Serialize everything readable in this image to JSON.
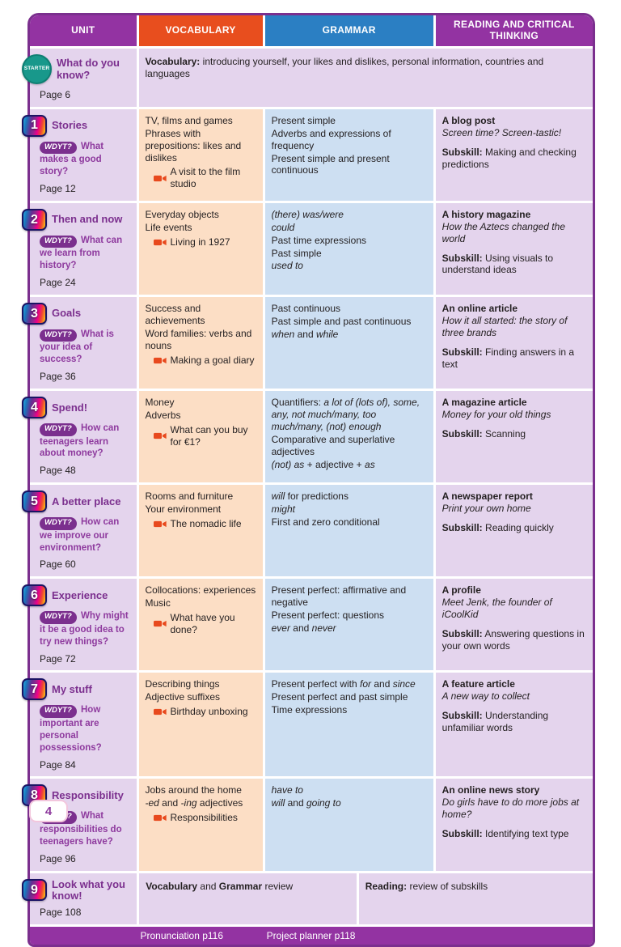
{
  "labels": {
    "wdyt": "WDYT?"
  },
  "header": {
    "unit": "UNIT",
    "vocabulary": "VOCABULARY",
    "grammar": "GRAMMAR",
    "reading": "READING AND CRITICAL THINKING"
  },
  "starter": {
    "badge": "STARTER",
    "title": "What do you know?",
    "page": "Page 6",
    "content": "**Vocabulary:** introducing yourself, your likes and dislikes, personal information, countries and languages"
  },
  "units": [
    {
      "number": "1",
      "title": "Stories",
      "question": "What makes a good story?",
      "page": "Page 12",
      "vocab": [
        "TV, films and games",
        "Phrases with prepositions: likes and dislikes"
      ],
      "vocab_video": "A visit to the film studio",
      "grammar": [
        "Present simple",
        "Adverbs and expressions of frequency",
        "Present simple and present continuous"
      ],
      "reading_title": "A blog post",
      "reading_sub": "Screen time? Screen-tastic!",
      "subskill": "**Subskill:** Making and checking predictions"
    },
    {
      "number": "2",
      "title": "Then and now",
      "question": "What can we learn from history?",
      "page": "Page 24",
      "vocab": [
        "Everyday objects",
        "Life events"
      ],
      "vocab_video": "Living in 1927",
      "grammar": [
        "*(there) was/were*",
        "*could*",
        "Past time expressions",
        "Past simple",
        "*used to*"
      ],
      "reading_title": "A history magazine",
      "reading_sub": "How the Aztecs changed the world",
      "subskill": "**Subskill:** Using visuals to understand ideas"
    },
    {
      "number": "3",
      "title": "Goals",
      "question": "What is your idea of success?",
      "page": "Page 36",
      "vocab": [
        "Success and achievements",
        "Word families: verbs and nouns"
      ],
      "vocab_video": "Making a goal diary",
      "grammar": [
        "Past continuous",
        "Past simple and past continuous",
        "*when* and *while*"
      ],
      "reading_title": "An online article",
      "reading_sub": "How it all started: the story of three brands",
      "subskill": "**Subskill:** Finding answers in a text"
    },
    {
      "number": "4",
      "title": "Spend!",
      "question": "How can teenagers learn about money?",
      "page": "Page 48",
      "vocab": [
        "Money",
        "Adverbs"
      ],
      "vocab_video": "What can you buy for €1?",
      "grammar": [
        "Quantifiers: *a lot of (lots of), some, any, not much/many, too much/many, (not) enough*",
        "Comparative and superlative adjectives",
        "*(not) as* + adjective + *as*"
      ],
      "reading_title": "A magazine article",
      "reading_sub": "Money for your old things",
      "subskill": "**Subskill:** Scanning"
    },
    {
      "number": "5",
      "title": "A better place",
      "question": "How can we improve our environment?",
      "page": "Page 60",
      "vocab": [
        "Rooms and furniture",
        "Your environment"
      ],
      "vocab_video": "The nomadic life",
      "grammar": [
        "*will* for predictions",
        "*might*",
        "First and zero conditional"
      ],
      "reading_title": "A newspaper report",
      "reading_sub": "Print your own home",
      "subskill": "**Subskill:** Reading quickly"
    },
    {
      "number": "6",
      "title": "Experience",
      "question": "Why might it be a good idea to try new things?",
      "page": "Page 72",
      "vocab": [
        "Collocations: experiences",
        "Music"
      ],
      "vocab_video": "What have you done?",
      "grammar": [
        "Present perfect: affirmative and negative",
        "Present perfect: questions",
        "*ever* and *never*"
      ],
      "reading_title": "A profile",
      "reading_sub": "Meet Jenk, the founder of iCoolKid",
      "subskill": "**Subskill:** Answering questions in your own words"
    },
    {
      "number": "7",
      "title": "My stuff",
      "question": "How important are personal possessions?",
      "page": "Page 84",
      "vocab": [
        "Describing things",
        "Adjective suffixes"
      ],
      "vocab_video": "Birthday unboxing",
      "grammar": [
        "Present perfect with *for* and *since*",
        "Present perfect and past simple",
        "Time expressions"
      ],
      "reading_title": "A feature article",
      "reading_sub": "A new way to collect",
      "subskill": "**Subskill:** Understanding unfamiliar words"
    },
    {
      "number": "8",
      "title": "Responsibility",
      "question": "What responsibilities do teenagers have?",
      "page": "Page 96",
      "vocab": [
        "Jobs around the home",
        "*-ed* and *-ing* adjectives"
      ],
      "vocab_video": "Responsibilities",
      "grammar": [
        "*have to*",
        "*will* and *going to*"
      ],
      "reading_title": "An online news story",
      "reading_sub": "Do girls have to do more jobs at home?",
      "subskill": "**Subskill:** Identifying text type"
    }
  ],
  "unit9": {
    "number": "9",
    "title": "Look what you know!",
    "page": "Page 108",
    "review": "**Vocabulary** and **Grammar** review",
    "reading_review": "**Reading:** review of subskills"
  },
  "footer": {
    "pronunciation": "Pronunciation p116",
    "project_planner": "Project planner p118"
  },
  "page_number": "4"
}
